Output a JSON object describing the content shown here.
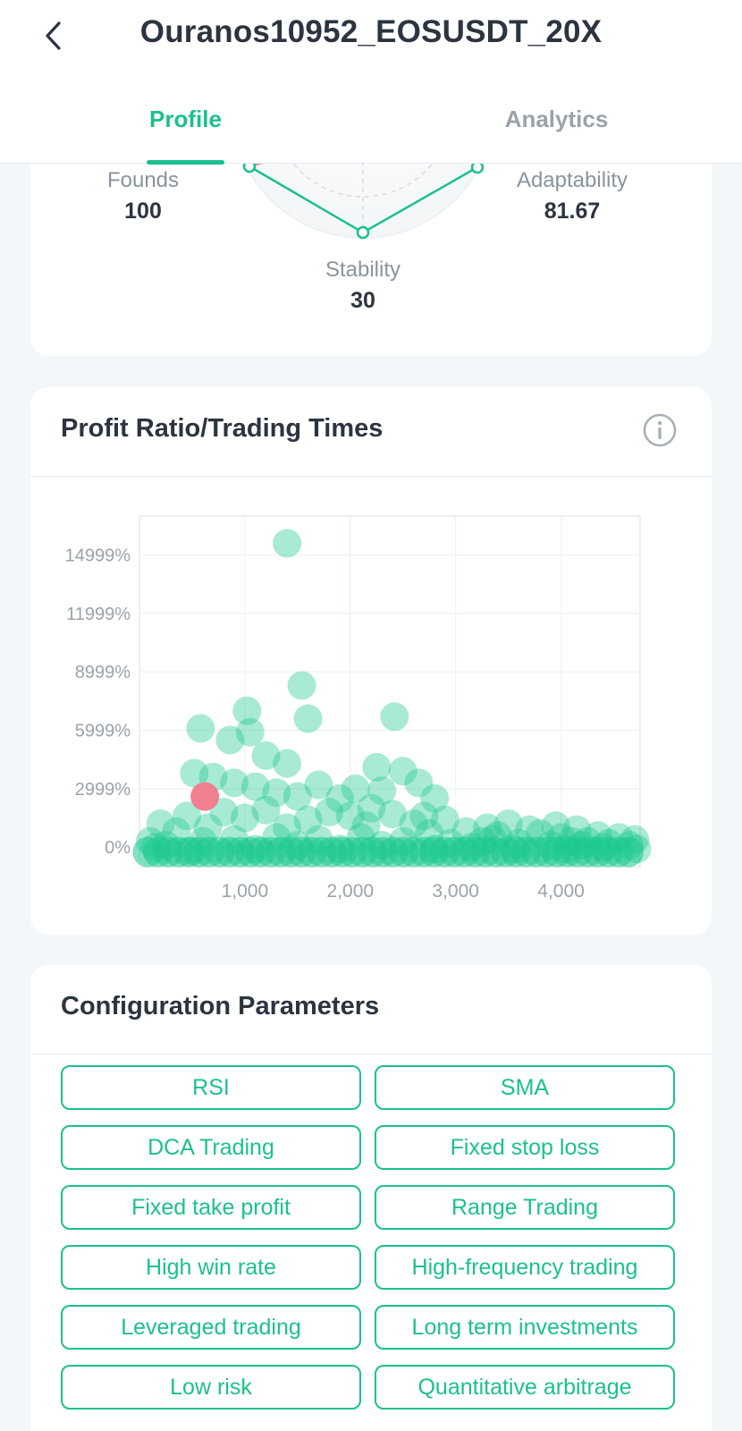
{
  "header": {
    "title": "Ouranos10952_EOSUSDT_20X",
    "tabs": [
      {
        "label": "Profile",
        "active": true
      },
      {
        "label": "Analytics",
        "active": false
      }
    ]
  },
  "radar": {
    "metrics": [
      {
        "label": "Founds",
        "value": "100"
      },
      {
        "label": "Adaptability",
        "value": "81.67"
      },
      {
        "label": "Stability",
        "value": "30"
      }
    ]
  },
  "profit_chart": {
    "title": "Profit Ratio/Trading Times",
    "info_icon": "info-icon",
    "y_ticks": [
      "14999%",
      "11999%",
      "8999%",
      "5999%",
      "2999%",
      "0%"
    ],
    "x_ticks": [
      "1,000",
      "2,000",
      "3,000",
      "4,000"
    ]
  },
  "chart_data": {
    "type": "scatter",
    "title": "Profit Ratio/Trading Times",
    "xlabel": "",
    "ylabel": "",
    "xlim": [
      0,
      4750
    ],
    "ylim": [
      -1000,
      17000
    ],
    "grid": true,
    "colors": {
      "points": "#1cc88f",
      "highlight": "#f07a8a"
    },
    "highlight": {
      "x": 620,
      "y": 2600
    },
    "points": [
      [
        1400,
        15600
      ],
      [
        1540,
        8300
      ],
      [
        1020,
        7000
      ],
      [
        1600,
        6600
      ],
      [
        2420,
        6700
      ],
      [
        580,
        6100
      ],
      [
        860,
        5500
      ],
      [
        1050,
        5900
      ],
      [
        1200,
        4700
      ],
      [
        1400,
        4300
      ],
      [
        2250,
        4100
      ],
      [
        2500,
        3900
      ],
      [
        2650,
        3300
      ],
      [
        2800,
        2500
      ],
      [
        520,
        3800
      ],
      [
        700,
        3600
      ],
      [
        900,
        3300
      ],
      [
        1100,
        3100
      ],
      [
        1300,
        2800
      ],
      [
        1500,
        2600
      ],
      [
        1700,
        3200
      ],
      [
        1900,
        2500
      ],
      [
        2050,
        3000
      ],
      [
        2300,
        2900
      ],
      [
        2700,
        1600
      ],
      [
        3300,
        1000
      ],
      [
        3500,
        1200
      ],
      [
        3700,
        900
      ],
      [
        3950,
        1100
      ],
      [
        4150,
        900
      ],
      [
        4350,
        600
      ],
      [
        4550,
        500
      ],
      [
        4700,
        400
      ],
      [
        200,
        1200
      ],
      [
        350,
        800
      ],
      [
        450,
        1600
      ],
      [
        800,
        1800
      ],
      [
        1000,
        1500
      ],
      [
        1200,
        1900
      ],
      [
        1600,
        1400
      ],
      [
        1800,
        1800
      ],
      [
        2000,
        1600
      ],
      [
        2200,
        2000
      ],
      [
        2400,
        1700
      ],
      [
        2600,
        1200
      ],
      [
        2900,
        1400
      ],
      [
        3100,
        800
      ],
      [
        3400,
        600
      ],
      [
        3800,
        700
      ],
      [
        4000,
        500
      ],
      [
        4250,
        300
      ],
      [
        4450,
        200
      ],
      [
        100,
        300
      ],
      [
        250,
        100
      ],
      [
        600,
        300
      ],
      [
        900,
        400
      ],
      [
        1300,
        500
      ],
      [
        1700,
        400
      ],
      [
        2100,
        500
      ],
      [
        2500,
        300
      ],
      [
        2950,
        200
      ],
      [
        3250,
        300
      ],
      [
        3600,
        200
      ],
      [
        3900,
        100
      ],
      [
        4200,
        100
      ],
      [
        4650,
        100
      ],
      [
        150,
        0
      ],
      [
        500,
        -200
      ],
      [
        1100,
        -100
      ],
      [
        1500,
        100
      ],
      [
        1900,
        -100
      ],
      [
        2300,
        100
      ],
      [
        2800,
        -100
      ],
      [
        3150,
        0
      ],
      [
        3550,
        -100
      ],
      [
        4050,
        -100
      ],
      [
        4400,
        0
      ],
      [
        4720,
        -100
      ],
      [
        650,
        1000
      ],
      [
        1400,
        1000
      ],
      [
        2150,
        1100
      ],
      [
        2750,
        700
      ],
      [
        3350,
        400
      ],
      [
        4100,
        300
      ]
    ]
  },
  "config": {
    "title": "Configuration Parameters",
    "chips": [
      "RSI",
      "SMA",
      "DCA Trading",
      "Fixed stop loss",
      "Fixed take profit",
      "Range Trading",
      "High win rate",
      "High-frequency trading",
      "Leveraged trading",
      "Long term investments",
      "Low risk",
      "Quantitative arbitrage"
    ]
  }
}
